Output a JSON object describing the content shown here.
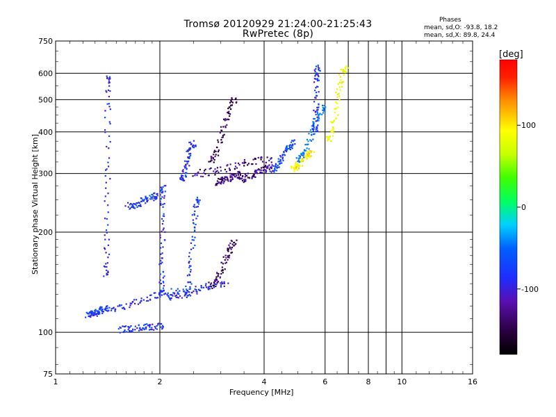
{
  "header": {
    "title_line1": "Tromsø 20120929 21:24:00-21:25:43",
    "title_line2": "RwPretec (8p)",
    "phases_heading": "Phases",
    "phases_o": "mean, sd,O:  -93.8, 18.2",
    "phases_x": "mean, sd,X:  89.8, 24.4"
  },
  "colorbar": {
    "unit": "[deg]",
    "ticks": [
      "100",
      "0",
      "-100"
    ],
    "tick_values": [
      100,
      0,
      -100
    ],
    "range": [
      -180,
      180
    ]
  },
  "colors": {
    "grid": "#000000",
    "background": "#ffffff"
  },
  "chart_data": {
    "type": "scatter",
    "title": "Tromsø 20120929 21:24:00-21:25:43",
    "subtitle": "RwPretec (8p)",
    "xlabel": "Frequency [MHz]",
    "ylabel": "Stationary phase Virtual Height [km]",
    "x_scale": "log",
    "y_scale": "log",
    "xlim": [
      1,
      16
    ],
    "ylim": [
      75,
      750
    ],
    "xticks": [
      "1",
      "2",
      "4",
      "6",
      "8",
      "10",
      "16"
    ],
    "xtick_values": [
      1,
      2,
      4,
      6,
      8,
      10,
      16
    ],
    "yticks": [
      "75",
      "100",
      "200",
      "300",
      "400",
      "500",
      "600",
      "750"
    ],
    "ytick_values": [
      75,
      100,
      200,
      300,
      400,
      500,
      600,
      750
    ],
    "grid": true,
    "point_color_quantity": "phase [deg]",
    "traces": [
      {
        "x": [
          1.23,
          1.4
        ],
        "y": [
          113,
          117
        ],
        "phase": -105
      },
      {
        "x": [
          1.52,
          2.05
        ],
        "y": [
          102,
          104
        ],
        "phase": -108
      },
      {
        "x": [
          1.4,
          2.3
        ],
        "y": [
          118,
          133
        ],
        "phase": -110
      },
      {
        "x": [
          2.02,
          2.05
        ],
        "y": [
          130,
          272
        ],
        "phase": -108
      },
      {
        "x": [
          2.1,
          3.1
        ],
        "y": [
          128,
          140
        ],
        "phase": -112
      },
      {
        "x": [
          1.62,
          2.0
        ],
        "y": [
          240,
          257
        ],
        "phase": -105
      },
      {
        "x": [
          2.38,
          2.58
        ],
        "y": [
          130,
          252
        ],
        "phase": -105
      },
      {
        "x": [
          2.82,
          3.3
        ],
        "y": [
          138,
          185
        ],
        "phase": -145
      },
      {
        "x": [
          2.9,
          3.4
        ],
        "y": [
          283,
          297
        ],
        "phase": -140
      },
      {
        "x": [
          3.4,
          4.2
        ],
        "y": [
          289,
          312
        ],
        "phase": -135
      },
      {
        "x": [
          2.5,
          4.2
        ],
        "y": [
          300,
          330
        ],
        "phase": -140
      },
      {
        "x": [
          2.8,
          3.3
        ],
        "y": [
          330,
          500
        ],
        "phase": -150
      },
      {
        "x": [
          2.3,
          2.5
        ],
        "y": [
          290,
          370
        ],
        "phase": -110
      },
      {
        "x": [
          4.2,
          4.9
        ],
        "y": [
          310,
          370
        ],
        "phase": -100
      },
      {
        "x": [
          4.8,
          5.5
        ],
        "y": [
          310,
          345
        ],
        "phase": 100
      },
      {
        "x": [
          5.0,
          6.0
        ],
        "y": [
          330,
          470
        ],
        "phase": -75
      },
      {
        "x": [
          5.6,
          5.7
        ],
        "y": [
          400,
          620
        ],
        "phase": -110
      },
      {
        "x": [
          6.1,
          6.9
        ],
        "y": [
          380,
          620
        ],
        "phase": 90
      },
      {
        "x": [
          1.4,
          1.42
        ],
        "y": [
          150,
          590
        ],
        "phase": -115
      }
    ]
  }
}
